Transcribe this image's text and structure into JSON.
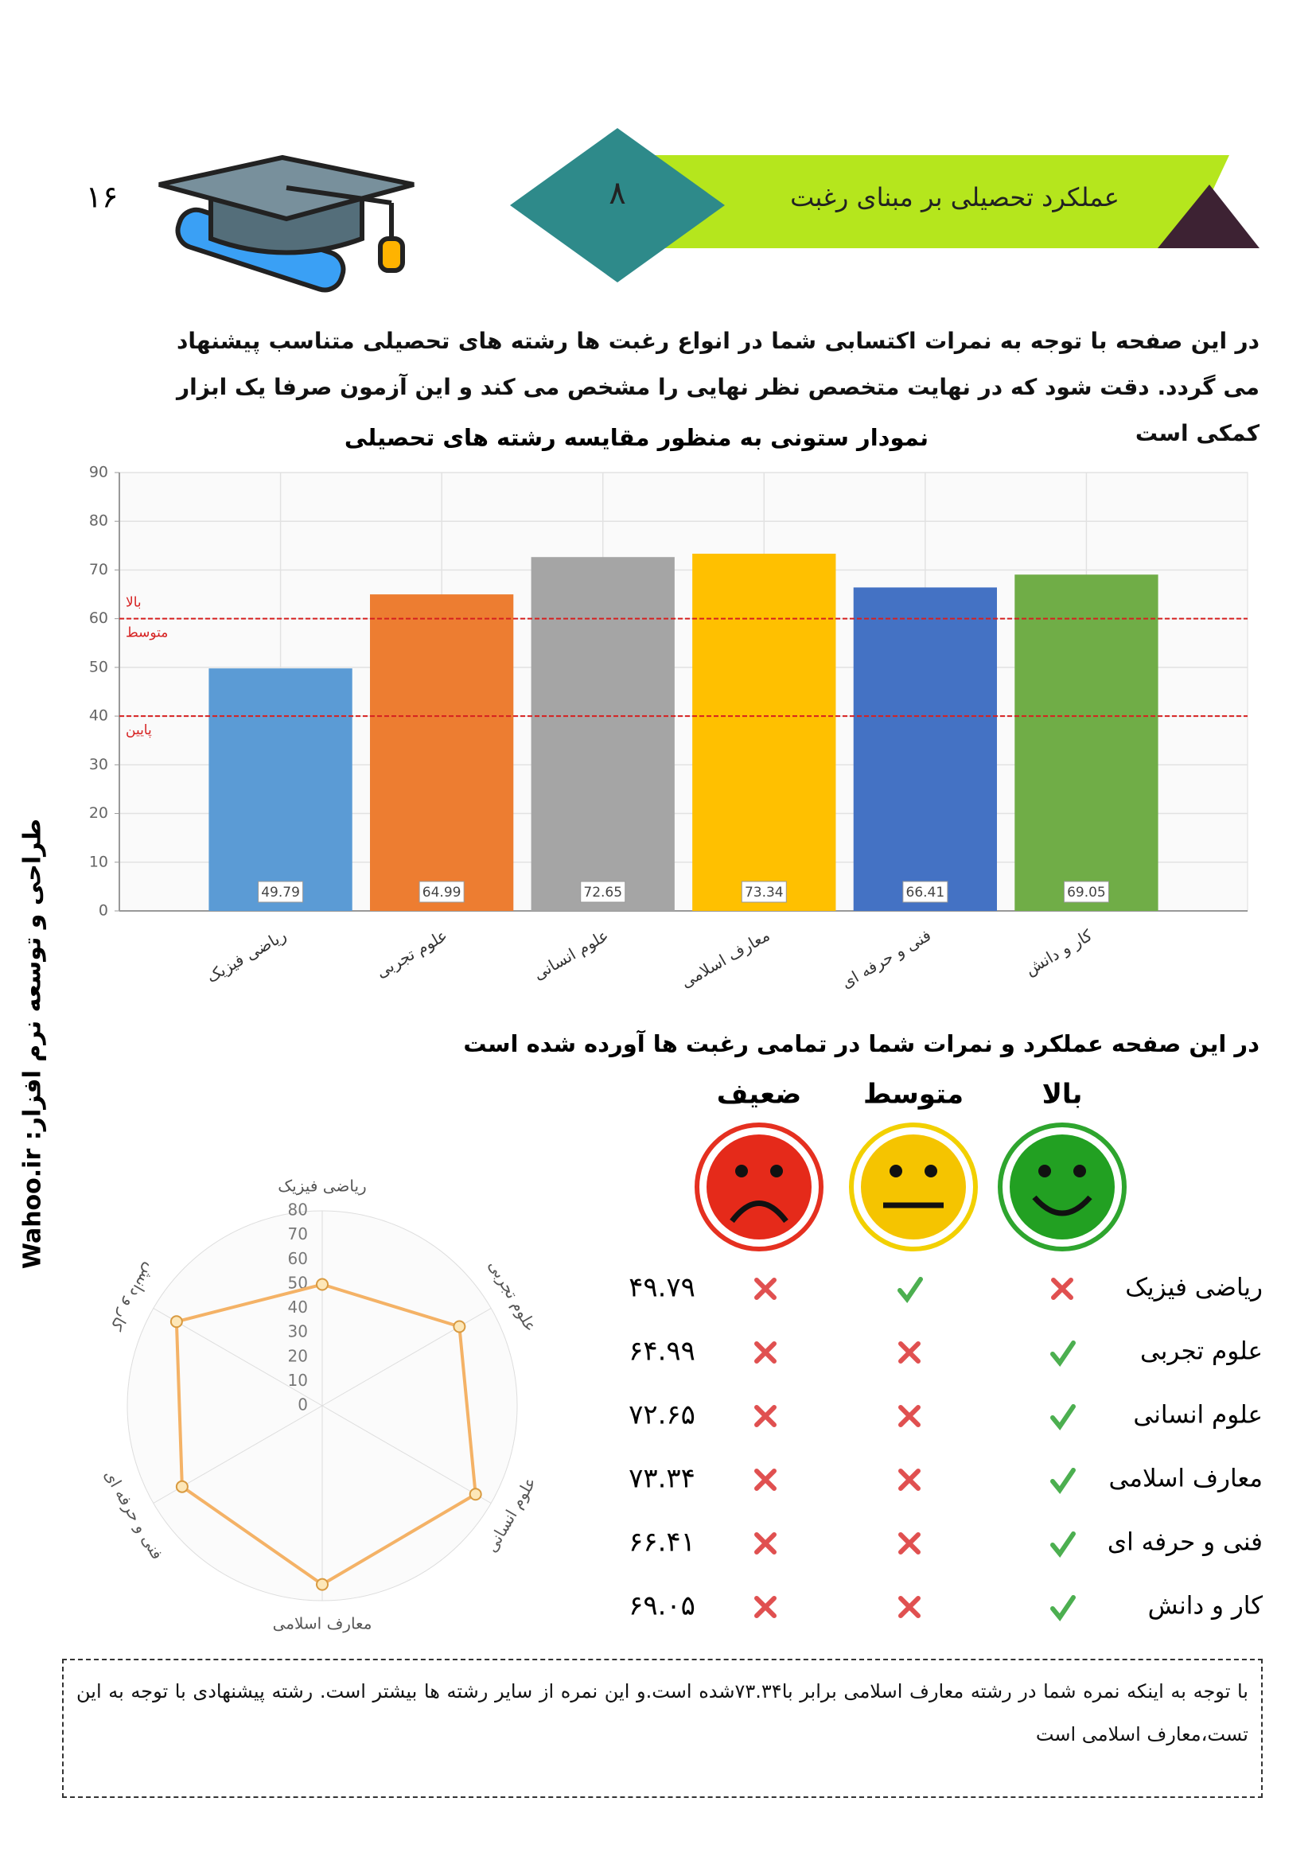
{
  "page_number": "۱۶",
  "header": {
    "number": "۸",
    "title": "عملکرد تحصیلی بر مبنای رغبت"
  },
  "intro": "در این صفحه با توجه به نمرات اکتسابی شما در انواع رغبت ها رشته های تحصیلی متناسب پیشنهاد می گردد. دقت شود که در نهایت متخصص نظر نهایی را مشخص می کند و این آزمون صرفا یک ابزار کمکی است",
  "side_text": "طراحی و توسعه نرم افزار: Wahoo.ir",
  "chart_data": [
    {
      "type": "bar",
      "title": "نمودار ستونی به منظور مقایسه رشته های تحصیلی",
      "categories": [
        "ریاضی فیزیک",
        "علوم تجربی",
        "علوم انسانی",
        "معارف اسلامی",
        "فنی و حرفه ای",
        "کار و دانش"
      ],
      "values": [
        49.79,
        64.99,
        72.65,
        73.34,
        66.41,
        69.05
      ],
      "colors": [
        "#5b9bd5",
        "#ed7d31",
        "#a5a5a5",
        "#ffc000",
        "#4472c4",
        "#70ad47"
      ],
      "ylim": [
        0,
        90
      ],
      "yticks": [
        0,
        10,
        20,
        30,
        40,
        50,
        60,
        70,
        80,
        90
      ],
      "grid": true,
      "reference_lines": [
        {
          "value": 60,
          "label_above": "بالا",
          "label_below": "متوسط",
          "color": "#d62020"
        },
        {
          "value": 40,
          "label_below": "پایین",
          "color": "#d62020"
        }
      ]
    },
    {
      "type": "radar",
      "categories": [
        "ریاضی فیزیک",
        "علوم تجربی",
        "علوم انسانی",
        "معارف اسلامی",
        "فنی و حرفه ای",
        "کار و دانش"
      ],
      "values": [
        49.79,
        64.99,
        72.65,
        73.34,
        66.41,
        69.05
      ],
      "color": "#f4b266",
      "ylim": [
        0,
        80
      ],
      "yticks": [
        0,
        10,
        20,
        30,
        40,
        50,
        60,
        70,
        80
      ],
      "grid": true
    }
  ],
  "table": {
    "title": "در این صفحه عملکرد و نمرات شما در تمامی رغبت ها آورده شده است",
    "columns": [
      "بالا",
      "متوسط",
      "ضعیف"
    ],
    "rows": [
      {
        "label": "ریاضی فیزیک",
        "marks": [
          false,
          true,
          false
        ],
        "score": "۴۹.۷۹"
      },
      {
        "label": "علوم تجربی",
        "marks": [
          true,
          false,
          false
        ],
        "score": "۶۴.۹۹"
      },
      {
        "label": "علوم انسانی",
        "marks": [
          true,
          false,
          false
        ],
        "score": "۷۲.۶۵"
      },
      {
        "label": "معارف اسلامی",
        "marks": [
          true,
          false,
          false
        ],
        "score": "۷۳.۳۴"
      },
      {
        "label": "فنی و حرفه ای",
        "marks": [
          true,
          false,
          false
        ],
        "score": "۶۶.۴۱"
      },
      {
        "label": "کار و دانش",
        "marks": [
          true,
          false,
          false
        ],
        "score": "۶۹.۰۵"
      }
    ]
  },
  "note": "با توجه به اینکه نمره شما در رشته معارف اسلامی برابر با۷۳.۳۴شده است.و این نمره از سایر رشته ها بیشتر است. رشته پیشنهادی با توجه به این تست،معارف اسلامی است"
}
